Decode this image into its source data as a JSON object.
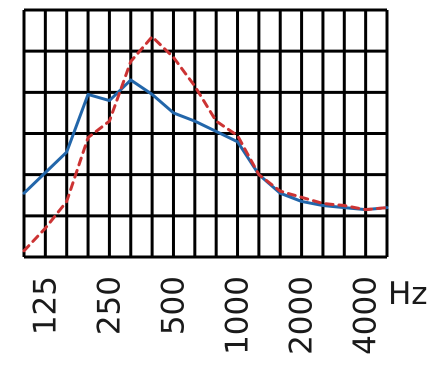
{
  "chart_data": {
    "type": "line",
    "x_scale": "log2-third-octave",
    "x_tick_labels": [
      "125",
      "250",
      "500",
      "1000",
      "2000",
      "4000"
    ],
    "x_unit": "Hz",
    "x": [
      100,
      125,
      160,
      200,
      250,
      315,
      400,
      500,
      630,
      800,
      1000,
      1250,
      1600,
      2000,
      2500,
      3150,
      4000,
      5000
    ],
    "ylim": [
      0,
      6
    ],
    "y_gridlines": 6,
    "grid": true,
    "legend": "none",
    "series": [
      {
        "color": "#2266aa",
        "style": "solid",
        "values": [
          1.55,
          2.05,
          2.55,
          3.95,
          3.8,
          4.3,
          3.95,
          3.5,
          3.3,
          3.05,
          2.8,
          2.0,
          1.55,
          1.35,
          1.25,
          1.2,
          1.15,
          1.2
        ]
      },
      {
        "color": "#cc3333",
        "style": "dashed",
        "values": [
          0.15,
          0.7,
          1.35,
          2.9,
          3.3,
          4.75,
          5.35,
          4.85,
          4.15,
          3.3,
          2.95,
          2.0,
          1.6,
          1.45,
          1.3,
          1.25,
          1.15,
          1.2
        ]
      }
    ]
  }
}
